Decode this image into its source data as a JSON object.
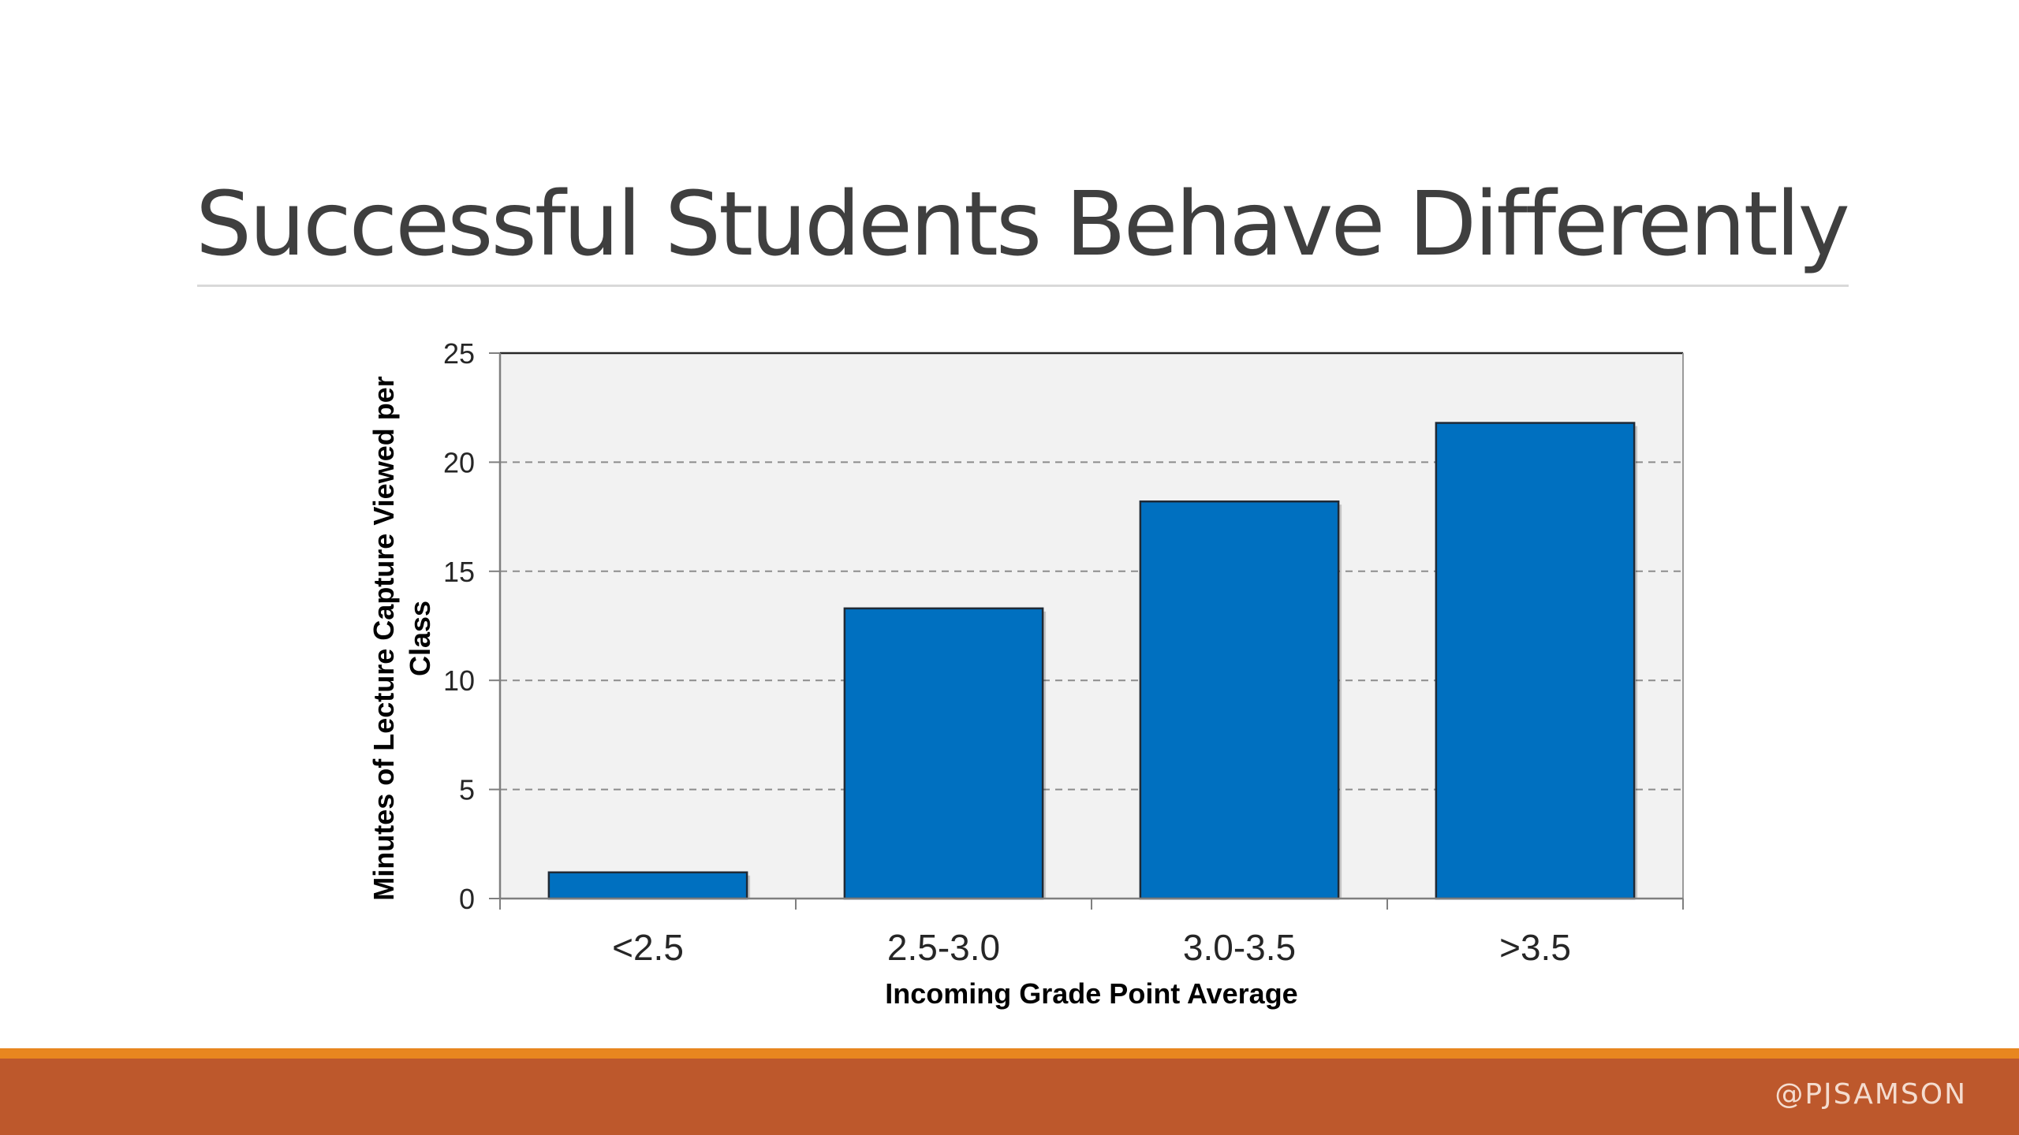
{
  "slide": {
    "title": "Successful Students Behave Differently",
    "footer_handle": "@PJSAMSON"
  },
  "colors": {
    "bar_fill": "#0070c0",
    "bar_stroke": "#1f2a36",
    "plot_background": "#f2f2f2",
    "footer_orange": "#e8861f",
    "footer_rust": "#bd582c"
  },
  "chart_data": {
    "type": "bar",
    "categories": [
      "<2.5",
      "2.5-3.0",
      "3.0-3.5",
      ">3.5"
    ],
    "values": [
      1.2,
      13.3,
      18.2,
      21.8
    ],
    "title": "",
    "xlabel": "Incoming Grade Point Average",
    "ylabel": "Minutes of Lecture Capture Viewed per Class",
    "ylim": [
      0,
      25
    ],
    "yticks": [
      0,
      5,
      10,
      15,
      20,
      25
    ],
    "grid": true,
    "legend": "none"
  }
}
